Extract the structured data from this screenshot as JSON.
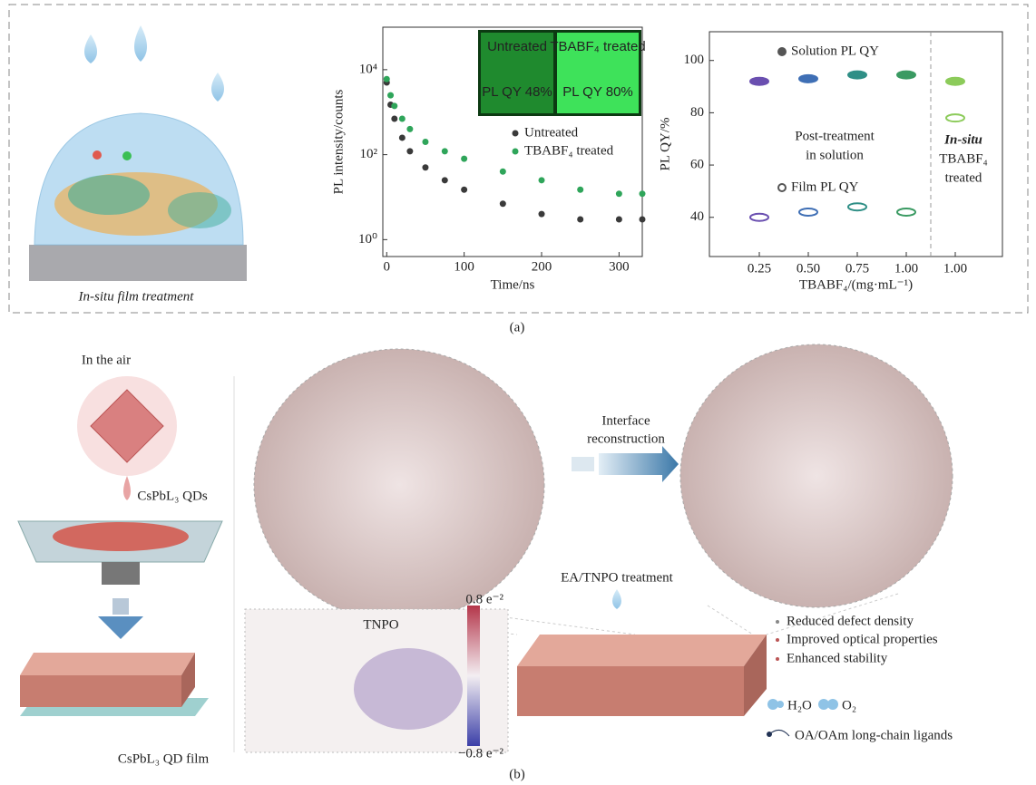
{
  "panel_a": {
    "film_caption": "In-situ film treatment",
    "label": "(a)"
  },
  "chart_data": [
    {
      "type": "scatter",
      "xlabel": "Time/ns",
      "ylabel": "PL intensity/counts",
      "x": [
        0,
        5,
        10,
        20,
        30,
        50,
        75,
        100,
        150,
        200,
        250,
        300,
        330
      ],
      "series": [
        {
          "name": "Untreated",
          "color": "#3a3a3a",
          "values": [
            5000,
            1500,
            700,
            250,
            120,
            50,
            25,
            15,
            7,
            4,
            3,
            3,
            3
          ]
        },
        {
          "name": "TBABF₄ treated",
          "color": "#2fa55a",
          "values": [
            6000,
            2500,
            1400,
            700,
            400,
            200,
            120,
            80,
            40,
            25,
            15,
            12,
            12
          ]
        }
      ],
      "xlim": [
        -5,
        330
      ],
      "xticks": [
        0,
        100,
        200,
        300
      ],
      "ylim": [
        0.4,
        100000
      ],
      "log_y": true,
      "yticks": [
        {
          "value": 1,
          "label": "10⁰"
        },
        {
          "value": 100,
          "label": "10²"
        },
        {
          "value": 10000,
          "label": "10⁴"
        }
      ],
      "inset": {
        "left_title": "Untreated",
        "right_title": "TBABF₄ treated",
        "left_qy": "PL QY 48%",
        "right_qy": "PL QY 80%"
      }
    },
    {
      "type": "scatter",
      "xlabel": "TBABF₄/(mg·mL⁻¹)",
      "ylabel": "PL QY/%",
      "categories": [
        "0.25",
        "0.50",
        "0.75",
        "1.00",
        "1.00"
      ],
      "point_colors": [
        "#6a4fb0",
        "#3f6fb5",
        "#2f8f86",
        "#3a9a62",
        "#8ccb5a"
      ],
      "series": [
        {
          "name": "Solution PL QY",
          "color": "#555555",
          "marker": "filled",
          "values": [
            92,
            93,
            94.5,
            94.5,
            92
          ]
        },
        {
          "name": "Film PL QY",
          "color": "#555555",
          "marker": "hollow",
          "values": [
            40,
            42,
            44,
            42,
            78
          ]
        }
      ],
      "ylim": [
        25,
        111
      ],
      "yticks": [
        40,
        60,
        80,
        100
      ],
      "annotations": [
        "Post-treatment",
        "in solution",
        "In-situ",
        "TBABF₄",
        "treated"
      ]
    }
  ],
  "panel_b": {
    "label": "(b)",
    "in_air": "In the air",
    "qds": "CsPbL₃ QDs",
    "film": "CsPbL₃ QD film",
    "arrow_label": [
      "Interface",
      "reconstruction"
    ],
    "treatment": "EA/TNPO treatment",
    "molecule": "TNPO",
    "scale_max": "0.8 e⁻²",
    "scale_min": "−0.8 e⁻²",
    "benefits": [
      "Reduced defect density",
      "Improved optical properties",
      "Enhanced stability"
    ],
    "legend": {
      "water": "H₂O",
      "oxygen": "O₂",
      "ligands": "OA/OAm long-chain ligands"
    }
  }
}
